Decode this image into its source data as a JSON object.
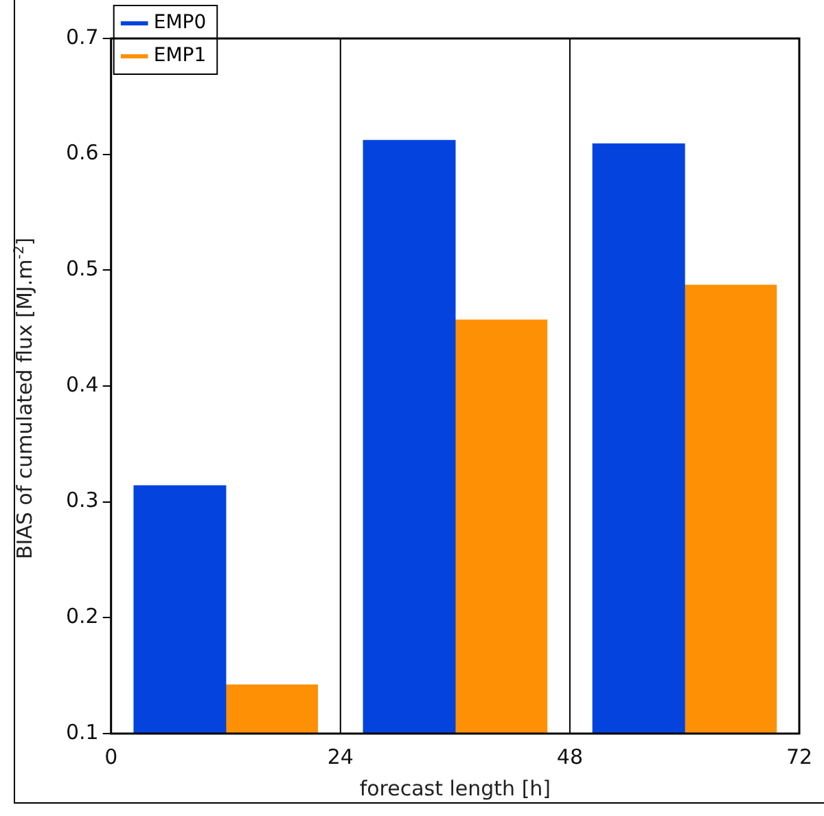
{
  "chart_data": {
    "type": "bar",
    "xlabel": "forecast length [h]",
    "ylabel": "BIAS of cumulated flux [MJ.m$^{-2}$]",
    "series": [
      {
        "name": "EMP0",
        "color": "#0443de",
        "x": [
          7.2,
          31.2,
          55.2
        ],
        "values": [
          0.314,
          0.612,
          0.609
        ]
      },
      {
        "name": "EMP1",
        "color": "#fe9006",
        "x": [
          16.8,
          40.8,
          64.8
        ],
        "values": [
          0.142,
          0.457,
          0.487
        ]
      }
    ],
    "xlim": [
      0,
      72
    ],
    "xticks": [
      0,
      24,
      48,
      72
    ],
    "ylim": [
      0.1,
      0.7
    ],
    "yticks": [
      0.1,
      0.2,
      0.3,
      0.4,
      0.5,
      0.6,
      0.7
    ],
    "ref_lines": [
      {
        "axis": "x",
        "value": 24,
        "color": "#000000"
      },
      {
        "axis": "x",
        "value": 48,
        "color": "#000000"
      }
    ],
    "grid": false,
    "legend": "top left"
  }
}
